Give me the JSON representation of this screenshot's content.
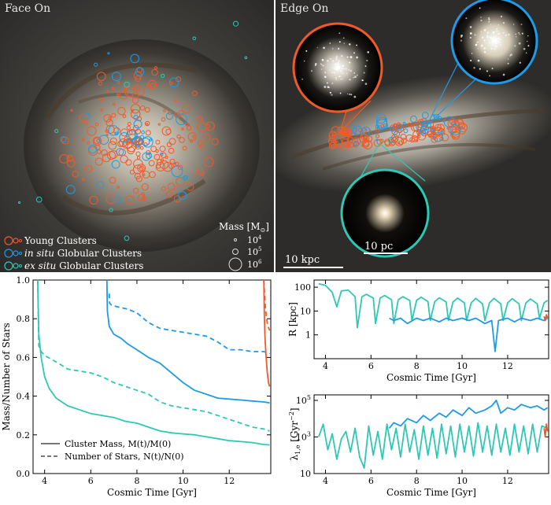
{
  "face_on": {
    "title": "Face On",
    "legend": {
      "young": "Young Clusters",
      "insitu_em": "in situ",
      "insitu_rest": "Globular Clusters",
      "exsitu_em": "ex situ",
      "exsitu_rest": "Globular Clusters"
    },
    "mass_legend": {
      "title": "Mass [M",
      "title_sub": "⊙",
      "title_end": "]",
      "m4": "10",
      "m4_exp": "4",
      "m5": "10",
      "m5_exp": "5",
      "m6": "10",
      "m6_exp": "6"
    }
  },
  "edge_on": {
    "title": "Edge On",
    "scalebar_kpc": "10 kpc",
    "scalebar_pc": "10 pc"
  },
  "colors": {
    "young": "#f05a28",
    "insitu": "#1e9be6",
    "exsitu": "#2ec8b4"
  },
  "chart_data": [
    {
      "type": "line",
      "xlabel": "Cosmic Time [Gyr]",
      "ylabel": "Mass/Number of Stars",
      "xlim": [
        3.5,
        13.8
      ],
      "ylim": [
        0.0,
        1.0
      ],
      "xticks": [
        "4",
        "6",
        "8",
        "10",
        "12"
      ],
      "yticks": [
        "0.0",
        "0.2",
        "0.4",
        "0.6",
        "0.8",
        "1.0"
      ],
      "legend_position": "lower-left",
      "legend": [
        "Cluster Mass, M(t)/M(0)",
        "Number of Stars, N(t)/N(0)"
      ],
      "series": [
        {
          "name": "Cluster Mass, M(t)/M(0)",
          "color": "exsitu",
          "dash": "solid",
          "x": [
            3.7,
            3.75,
            3.85,
            4.0,
            4.2,
            4.5,
            5.0,
            5.5,
            6.0,
            6.5,
            7.0,
            7.5,
            8.0,
            8.5,
            9.0,
            9.5,
            10.0,
            10.5,
            11.0,
            11.5,
            12.0,
            12.5,
            13.0,
            13.5,
            13.75
          ],
          "y": [
            1.0,
            0.72,
            0.6,
            0.5,
            0.44,
            0.39,
            0.35,
            0.33,
            0.31,
            0.3,
            0.29,
            0.27,
            0.26,
            0.24,
            0.22,
            0.21,
            0.205,
            0.2,
            0.19,
            0.18,
            0.17,
            0.165,
            0.16,
            0.15,
            0.148
          ]
        },
        {
          "name": "Number of Stars, N(t)/N(0)",
          "color": "exsitu",
          "dash": "dashed",
          "x": [
            3.7,
            3.75,
            3.85,
            4.0,
            4.3,
            4.6,
            5.0,
            5.5,
            6.0,
            6.5,
            7.0,
            7.5,
            8.0,
            8.5,
            9.0,
            9.5,
            10.0,
            10.5,
            11.0,
            11.5,
            12.0,
            12.5,
            13.0,
            13.5,
            13.75
          ],
          "y": [
            1.0,
            0.66,
            0.63,
            0.61,
            0.59,
            0.57,
            0.54,
            0.53,
            0.52,
            0.5,
            0.47,
            0.45,
            0.43,
            0.41,
            0.37,
            0.35,
            0.34,
            0.33,
            0.32,
            0.3,
            0.28,
            0.26,
            0.24,
            0.23,
            0.22
          ]
        },
        {
          "name": "in situ mass",
          "color": "insitu",
          "dash": "solid",
          "x": [
            6.7,
            6.72,
            6.8,
            7.0,
            7.3,
            7.6,
            8.0,
            8.5,
            9.0,
            9.5,
            10.0,
            10.5,
            11.0,
            11.5,
            12.0,
            12.5,
            13.0,
            13.5,
            13.75
          ],
          "y": [
            1.0,
            0.84,
            0.76,
            0.72,
            0.7,
            0.67,
            0.64,
            0.6,
            0.57,
            0.52,
            0.47,
            0.43,
            0.41,
            0.39,
            0.385,
            0.38,
            0.375,
            0.37,
            0.365
          ]
        },
        {
          "name": "in situ number",
          "color": "insitu",
          "dash": "dashed",
          "x": [
            6.8,
            6.82,
            6.9,
            7.2,
            7.6,
            8.0,
            8.5,
            9.0,
            9.5,
            10.0,
            10.5,
            11.0,
            11.5,
            12.0,
            12.5,
            13.0,
            13.5,
            13.75
          ],
          "y": [
            0.93,
            0.88,
            0.87,
            0.86,
            0.85,
            0.83,
            0.78,
            0.75,
            0.74,
            0.73,
            0.72,
            0.71,
            0.68,
            0.64,
            0.64,
            0.63,
            0.63,
            0.62
          ]
        },
        {
          "name": "young mass",
          "color": "young",
          "dash": "solid",
          "x": [
            13.5,
            13.52,
            13.55,
            13.6,
            13.65,
            13.7,
            13.75
          ],
          "y": [
            1.0,
            0.82,
            0.7,
            0.6,
            0.52,
            0.47,
            0.45
          ]
        },
        {
          "name": "young number",
          "color": "young",
          "dash": "dashed",
          "x": [
            13.5,
            13.53,
            13.57,
            13.62,
            13.68,
            13.75
          ],
          "y": [
            1.0,
            0.92,
            0.85,
            0.8,
            0.76,
            0.74
          ]
        }
      ]
    },
    {
      "type": "line",
      "xlabel": "Cosmic Time [Gyr]",
      "ylabel": "R [kpc]",
      "xlim": [
        3.5,
        13.8
      ],
      "ylim": [
        0.1,
        200
      ],
      "yscale": "log",
      "xticks": [
        "4",
        "6",
        "8",
        "10",
        "12"
      ],
      "yticks": [
        "100",
        "10",
        "1"
      ],
      "series": [
        {
          "name": "ex situ",
          "color": "exsitu",
          "x": [
            3.7,
            4.0,
            4.3,
            4.5,
            4.7,
            5.0,
            5.3,
            5.4,
            5.6,
            5.8,
            6.1,
            6.2,
            6.4,
            6.6,
            6.9,
            7.0,
            7.2,
            7.4,
            7.7,
            7.8,
            8.0,
            8.2,
            8.5,
            8.6,
            8.8,
            9.0,
            9.3,
            9.4,
            9.6,
            9.8,
            10.1,
            10.2,
            10.4,
            10.6,
            10.9,
            11.0,
            11.2,
            11.4,
            11.7,
            11.8,
            12.0,
            12.2,
            12.5,
            12.6,
            12.8,
            13.0,
            13.3,
            13.4,
            13.6,
            13.75
          ],
          "y": [
            140,
            120,
            60,
            15,
            70,
            75,
            40,
            2,
            40,
            50,
            35,
            3,
            35,
            45,
            30,
            3,
            30,
            40,
            28,
            4,
            28,
            38,
            25,
            4,
            25,
            36,
            24,
            4,
            24,
            35,
            22,
            4,
            22,
            34,
            20,
            4,
            22,
            34,
            20,
            4,
            22,
            33,
            20,
            4,
            22,
            32,
            20,
            5,
            22,
            28
          ]
        },
        {
          "name": "in situ",
          "color": "insitu",
          "x": [
            6.8,
            7.0,
            7.3,
            7.6,
            8.0,
            8.3,
            8.6,
            9.0,
            9.3,
            9.6,
            10.0,
            10.3,
            10.6,
            11.0,
            11.3,
            11.45,
            11.6,
            12.0,
            12.3,
            12.6,
            13.0,
            13.3,
            13.6,
            13.75
          ],
          "y": [
            5,
            4,
            5,
            3,
            5,
            4,
            5,
            3.5,
            5,
            4,
            5,
            4,
            5,
            3,
            4,
            0.2,
            4,
            5,
            3.5,
            5,
            4,
            5,
            4,
            5
          ]
        },
        {
          "name": "young",
          "color": "young",
          "x": [
            13.6,
            13.65,
            13.7,
            13.75
          ],
          "y": [
            6,
            4,
            7,
            5
          ]
        }
      ]
    },
    {
      "type": "line",
      "xlabel": "Cosmic Time [Gyr]",
      "ylabel": "λ_{1,e} [Gyr^{-2}]",
      "xlim": [
        3.5,
        13.8
      ],
      "ylim": [
        10,
        200000
      ],
      "yscale": "log",
      "xticks": [
        "4",
        "6",
        "8",
        "10",
        "12"
      ],
      "yticks": [
        "10^5",
        "10^3",
        "10"
      ],
      "series": [
        {
          "name": "ex situ",
          "color": "exsitu",
          "x": [
            3.7,
            3.9,
            4.1,
            4.3,
            4.5,
            4.7,
            4.9,
            5.1,
            5.3,
            5.5,
            5.7,
            5.9,
            6.1,
            6.3,
            6.5,
            6.7,
            6.9,
            7.1,
            7.3,
            7.5,
            7.7,
            7.9,
            8.1,
            8.3,
            8.5,
            8.7,
            8.9,
            9.1,
            9.3,
            9.5,
            9.7,
            9.9,
            10.1,
            10.3,
            10.5,
            10.7,
            10.9,
            11.1,
            11.3,
            11.5,
            11.7,
            11.9,
            12.1,
            12.3,
            12.5,
            12.7,
            12.9,
            13.1,
            13.3,
            13.5,
            13.75
          ],
          "y": [
            1000,
            5000,
            200,
            1500,
            60,
            800,
            2000,
            150,
            3000,
            80,
            20,
            4000,
            100,
            2000,
            60,
            5000,
            200,
            3000,
            80,
            5000,
            150,
            2500,
            60,
            4000,
            100,
            3000,
            70,
            5000,
            120,
            4000,
            80,
            5000,
            150,
            4000,
            90,
            6000,
            150,
            4000,
            100,
            5000,
            150,
            3000,
            100,
            5000,
            150,
            4000,
            120,
            5000,
            150,
            4000,
            3000
          ]
        },
        {
          "name": "in situ",
          "color": "insitu",
          "x": [
            6.8,
            7.0,
            7.3,
            7.6,
            8.0,
            8.3,
            8.6,
            9.0,
            9.3,
            9.6,
            10.0,
            10.3,
            10.6,
            11.0,
            11.3,
            11.5,
            11.7,
            12.0,
            12.3,
            12.6,
            13.0,
            13.3,
            13.6,
            13.75
          ],
          "y": [
            3000,
            6000,
            4000,
            10000,
            6000,
            15000,
            8000,
            20000,
            12000,
            30000,
            15000,
            40000,
            20000,
            30000,
            50000,
            100000,
            20000,
            40000,
            30000,
            60000,
            40000,
            50000,
            30000,
            40000
          ]
        },
        {
          "name": "young",
          "color": "young",
          "x": [
            13.6,
            13.65,
            13.7,
            13.75
          ],
          "y": [
            3000,
            1000,
            5000,
            2000
          ]
        }
      ]
    }
  ]
}
